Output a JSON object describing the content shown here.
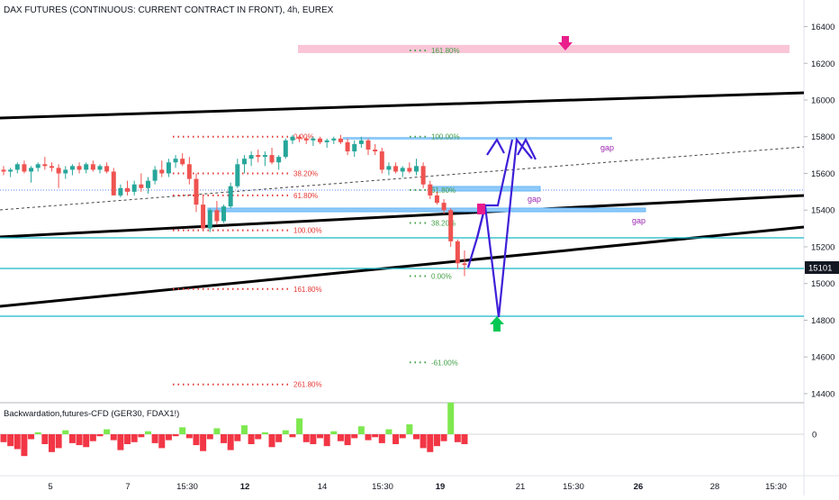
{
  "title": "DAX FUTURES (CONTINUOUS: CURRENT CONTRACT IN FRONT), 4h, EUREX",
  "indicator_title": "Backwardation,futures-CFD (GER30, FDAX1!)",
  "price_label": "15101",
  "colors": {
    "up": "#26a69a",
    "down": "#ef5350",
    "price_tag": "#131722",
    "fib_red": "#e53935",
    "fib_green": "#43a047",
    "channel": "#000000",
    "cyan_line": "#17b6c8",
    "gap_box": "#90caf9",
    "projection": "#3f1fd8",
    "arrow_pink": "#e91e8c",
    "arrow_green": "#00c853",
    "target_zone": "#f8bbd0",
    "gap_text": "#9c27b0"
  },
  "chart_data": {
    "type": "candlestick",
    "y_axis": {
      "ticks": [
        14400,
        14600,
        14800,
        15000,
        15200,
        15400,
        15600,
        15800,
        16000,
        16200,
        16400
      ],
      "range": [
        14350,
        16520
      ]
    },
    "x_axis": {
      "ticks": [
        "5",
        "7",
        "15:30",
        "12",
        "14",
        "15:30",
        "19",
        "21",
        "15:30",
        "26",
        "28",
        "15:30"
      ]
    },
    "price_last": 15101,
    "candles": [
      [
        15620,
        15640,
        15590,
        15610
      ],
      [
        15610,
        15630,
        15580,
        15620
      ],
      [
        15620,
        15660,
        15600,
        15650
      ],
      [
        15650,
        15670,
        15600,
        15610
      ],
      [
        15610,
        15640,
        15550,
        15630
      ],
      [
        15630,
        15660,
        15610,
        15650
      ],
      [
        15650,
        15690,
        15620,
        15640
      ],
      [
        15640,
        15660,
        15610,
        15630
      ],
      [
        15630,
        15650,
        15520,
        15600
      ],
      [
        15600,
        15640,
        15570,
        15620
      ],
      [
        15620,
        15650,
        15590,
        15640
      ],
      [
        15640,
        15660,
        15600,
        15620
      ],
      [
        15620,
        15660,
        15600,
        15650
      ],
      [
        15650,
        15670,
        15610,
        15620
      ],
      [
        15620,
        15650,
        15600,
        15640
      ],
      [
        15640,
        15660,
        15600,
        15610
      ],
      [
        15610,
        15630,
        15500,
        15480
      ],
      [
        15480,
        15540,
        15470,
        15520
      ],
      [
        15520,
        15560,
        15480,
        15500
      ],
      [
        15500,
        15560,
        15480,
        15540
      ],
      [
        15540,
        15600,
        15500,
        15520
      ],
      [
        15520,
        15580,
        15490,
        15560
      ],
      [
        15560,
        15640,
        15540,
        15620
      ],
      [
        15620,
        15670,
        15580,
        15600
      ],
      [
        15600,
        15680,
        15580,
        15660
      ],
      [
        15660,
        15700,
        15630,
        15680
      ],
      [
        15680,
        15710,
        15640,
        15650
      ],
      [
        15650,
        15690,
        15540,
        15570
      ],
      [
        15570,
        15600,
        15390,
        15430
      ],
      [
        15430,
        15480,
        15290,
        15300
      ],
      [
        15300,
        15410,
        15280,
        15400
      ],
      [
        15400,
        15450,
        15320,
        15340
      ],
      [
        15340,
        15430,
        15330,
        15420
      ],
      [
        15420,
        15550,
        15410,
        15530
      ],
      [
        15530,
        15680,
        15520,
        15650
      ],
      [
        15650,
        15700,
        15600,
        15680
      ],
      [
        15680,
        15720,
        15640,
        15700
      ],
      [
        15700,
        15730,
        15660,
        15690
      ],
      [
        15690,
        15720,
        15640,
        15700
      ],
      [
        15700,
        15740,
        15650,
        15660
      ],
      [
        15660,
        15700,
        15620,
        15690
      ],
      [
        15690,
        15790,
        15680,
        15780
      ],
      [
        15780,
        15810,
        15760,
        15800
      ],
      [
        15800,
        15810,
        15770,
        15790
      ],
      [
        15790,
        15800,
        15760,
        15780
      ],
      [
        15780,
        15800,
        15750,
        15790
      ],
      [
        15790,
        15800,
        15760,
        15770
      ],
      [
        15770,
        15790,
        15740,
        15780
      ],
      [
        15780,
        15800,
        15760,
        15790
      ],
      [
        15790,
        15810,
        15760,
        15770
      ],
      [
        15770,
        15790,
        15700,
        15720
      ],
      [
        15720,
        15780,
        15690,
        15760
      ],
      [
        15760,
        15800,
        15740,
        15780
      ],
      [
        15780,
        15790,
        15700,
        15730
      ],
      [
        15730,
        15760,
        15700,
        15720
      ],
      [
        15720,
        15740,
        15600,
        15620
      ],
      [
        15620,
        15660,
        15590,
        15640
      ],
      [
        15640,
        15660,
        15600,
        15610
      ],
      [
        15610,
        15640,
        15580,
        15630
      ],
      [
        15630,
        15660,
        15600,
        15610
      ],
      [
        15610,
        15680,
        15590,
        15640
      ],
      [
        15640,
        15660,
        15520,
        15540
      ],
      [
        15540,
        15560,
        15460,
        15480
      ],
      [
        15480,
        15500,
        15430,
        15440
      ],
      [
        15440,
        15460,
        15380,
        15400
      ],
      [
        15400,
        15410,
        15200,
        15230
      ],
      [
        15230,
        15240,
        15080,
        15110
      ],
      [
        15110,
        15180,
        15040,
        15101
      ]
    ],
    "fib_red": [
      {
        "label": "0.00%",
        "value": 15800
      },
      {
        "label": "38.20%",
        "value": 15600
      },
      {
        "label": "61.80%",
        "value": 15480
      },
      {
        "label": "100.00%",
        "value": 15290
      },
      {
        "label": "161.80%",
        "value": 14970
      },
      {
        "label": "261.80%",
        "value": 14450
      }
    ],
    "fib_green": [
      {
        "label": "161.80%",
        "value": 16270
      },
      {
        "label": "100.00%",
        "value": 15800
      },
      {
        "label": "61.80%",
        "value": 15510
      },
      {
        "label": "38.20%",
        "value": 15330
      },
      {
        "label": "0.00%",
        "value": 15040
      },
      {
        "label": "-61.00%",
        "value": 14570
      }
    ],
    "annotations": [
      "gap",
      "gap",
      "gap"
    ],
    "indicator": {
      "zero_label": "0",
      "values": [
        -0.8,
        -1.2,
        -1.5,
        -2.2,
        -0.5,
        0.2,
        -1.0,
        -1.8,
        -1.4,
        0.4,
        -0.9,
        -1.1,
        -1.3,
        -0.7,
        -0.2,
        0.5,
        -0.6,
        -1.6,
        -1.0,
        -0.8,
        -0.3,
        0.3,
        -0.9,
        -1.4,
        -0.6,
        -0.2,
        0.7,
        -0.4,
        -1.1,
        -1.7,
        -0.5,
        0.6,
        -0.9,
        -1.6,
        -0.7,
        0.9,
        -1.0,
        -0.5,
        0.2,
        -1.3,
        -0.8,
        0.4,
        -0.3,
        1.6,
        -0.8,
        -1.0,
        -0.4,
        -1.2,
        0.3,
        -0.7,
        -1.1,
        -0.4,
        0.8,
        -0.6,
        -0.3,
        -0.9,
        0.5,
        -1.0,
        -0.4,
        1.0,
        -0.5,
        -1.4,
        -1.8,
        -1.2,
        -0.7,
        3.2,
        -0.8,
        -1.0
      ]
    }
  }
}
